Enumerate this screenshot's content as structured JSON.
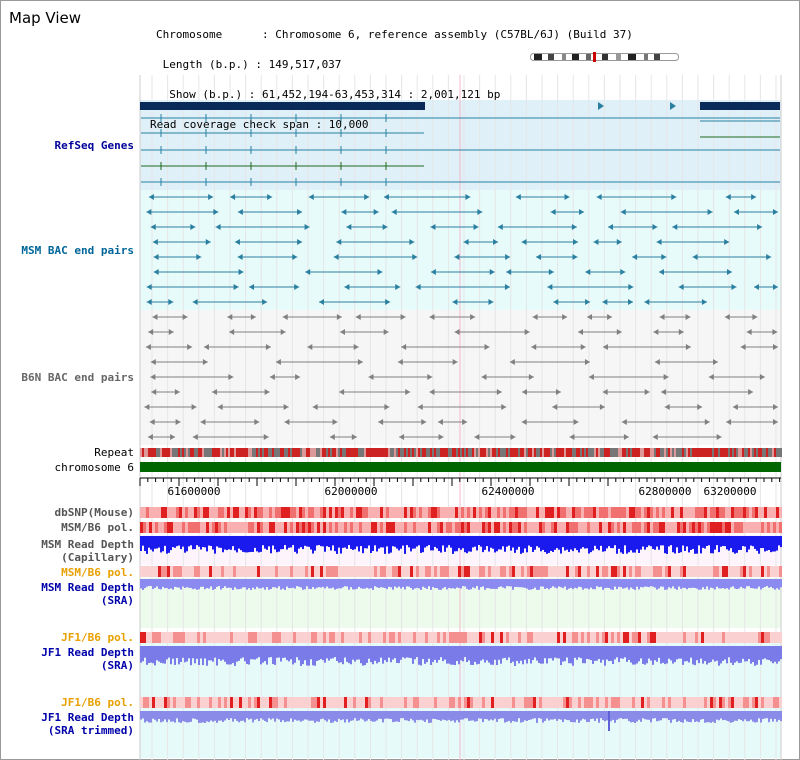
{
  "view_title": "Map View",
  "info": {
    "chromosome": "Chromosome      : Chromosome 6, reference assembly (C57BL/6J) (Build 37)",
    "length": " Length (b.p.) : 149,517,037",
    "show": "  Show (b.p.) : 61,452,194-63,453,314 : 2,001,121 bp",
    "coverage": "Read coverage check span : 10,000"
  },
  "track_labels": {
    "refseq": "RefSeq Genes",
    "msm_bac": "MSM BAC end pairs",
    "b6n_bac": "B6N BAC end pairs",
    "repeat": "Repeat",
    "chromosome": "chromosome 6",
    "dbsnp": "dbSNP(Mouse)",
    "msm_b6_pol": "MSM/B6 pol.",
    "msm_read_cap": "MSM Read Depth\n(Capillary)",
    "msm_b6_pol2": "MSM/B6 pol.",
    "msm_read_sra": "MSM Read Depth\n(SRA)",
    "jf1_b6_pol": "JF1/B6 pol.",
    "jf1_read_sra": "JF1 Read Depth\n(SRA)",
    "jf1_b6_pol2": "JF1/B6 pol.",
    "jf1_read_trim": "JF1 Read Depth\n(SRA trimmed)"
  },
  "axis_ticks": [
    "61600000",
    "62000000",
    "62400000",
    "62800000",
    "63200000"
  ],
  "colors": {
    "refseq_bg": "#dff0f8",
    "msm_bg": "#e8fbfb",
    "b6n_bg": "#f8f8f8",
    "teal": "#2a7fa0",
    "navy": "#0a2a5a",
    "gray": "#808080",
    "chrom_green": "#006600",
    "msm_label": "#006699",
    "b6n_label": "#666666",
    "pol_orange": "#e8a000",
    "depth_blue": "#0000aa"
  }
}
